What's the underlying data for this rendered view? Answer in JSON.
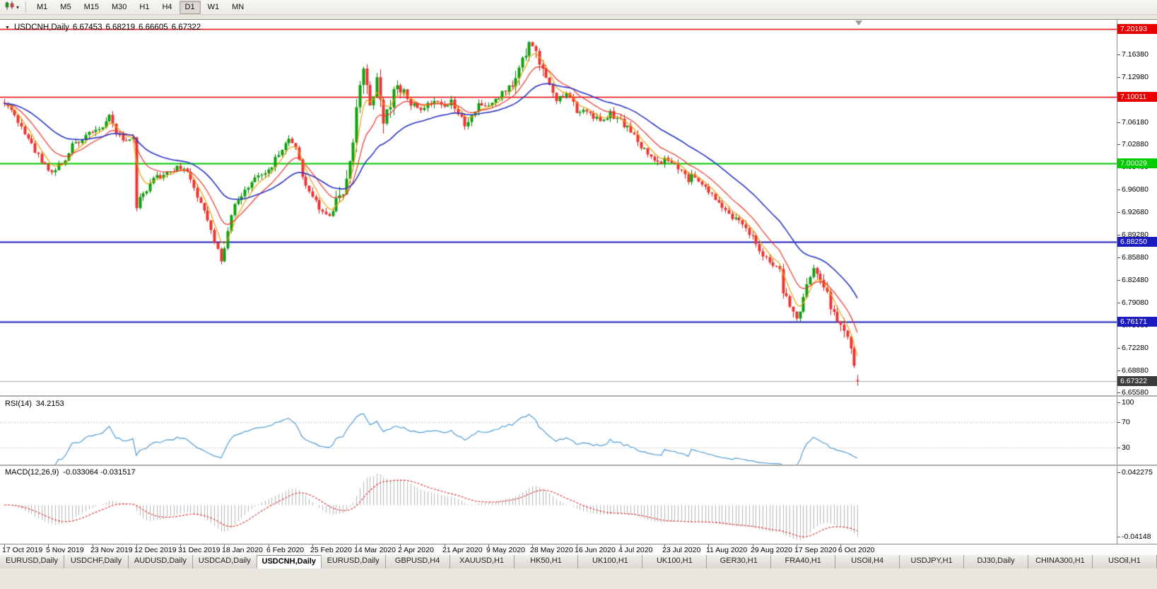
{
  "toolbar": {
    "timeframes": [
      "M1",
      "M5",
      "M15",
      "M30",
      "H1",
      "H4",
      "D1",
      "W1",
      "MN"
    ],
    "active_timeframe": "D1",
    "chart_type_icon": "candlestick-chart-icon",
    "dropdown_icon": "chevron-down"
  },
  "chart_header": {
    "collapse_icon": "▼",
    "symbol": "USDCNH,Daily",
    "open": "6.67453",
    "high": "6.68219",
    "low": "6.66605",
    "close": "6.67322"
  },
  "chart_data": {
    "type": "candlestick",
    "symbol": "USDCNH",
    "timeframe": "Daily",
    "price_axis": {
      "labels": [
        "7.16380",
        "7.12980",
        "7.09580",
        "7.06180",
        "7.02880",
        "6.99480",
        "6.96080",
        "6.92680",
        "6.89280",
        "6.85880",
        "6.82480",
        "6.79080",
        "6.75680",
        "6.72280",
        "6.68880",
        "6.65580"
      ],
      "range": {
        "top": 7.2159,
        "bottom": 6.6527
      }
    },
    "hlines": [
      {
        "price": 7.20193,
        "label": "7.20193",
        "color": "#e80000",
        "width": 1.4
      },
      {
        "price": 7.10011,
        "label": "7.10011",
        "color": "#e80000",
        "width": 1.4
      },
      {
        "price": 7.00029,
        "label": "7.00029",
        "color": "#00cc00",
        "width": 1.8
      },
      {
        "price": 6.8825,
        "label": "6.88250",
        "color": "#1c1cbe",
        "width": 1.8
      },
      {
        "price": 6.76171,
        "label": "6.76171",
        "color": "#1c1cbe",
        "width": 1.8
      }
    ],
    "current_price": {
      "value": 6.67322,
      "label": "6.67322",
      "line_color": "#aaaaaa",
      "box_color": "#3c3c3c"
    },
    "colors": {
      "bull": "#0da10d",
      "bear": "#ee3333",
      "bull_wick": "#0a7d0a",
      "bear_wick": "#c02020",
      "ma_fast": "#f0a000",
      "ma_mid": "#f03428",
      "ma_slow": "#2a35c8",
      "rsi_line": "#4f9bd5",
      "rsi_levels_color": "#c8c8c8",
      "macd_hist": "#b6b6b6",
      "macd_signal": "#e03030"
    },
    "moving_averages": [
      {
        "period": 5,
        "type": "ema",
        "color_key": "ma_fast"
      },
      {
        "period": 12,
        "type": "ema",
        "color_key": "ma_mid"
      },
      {
        "period": 30,
        "type": "ema",
        "color_key": "ma_slow"
      }
    ],
    "candles": {
      "count": 253,
      "x_step": 4.79,
      "seed": 1337,
      "base_vol": 0.009,
      "vol_zones": [
        {
          "from": 98,
          "to": 118,
          "factor": 2.4
        },
        {
          "from": 150,
          "to": 162,
          "factor": 1.7
        },
        {
          "from": 228,
          "to": 252,
          "factor": 1.5
        }
      ],
      "last": {
        "o": 6.67453,
        "h": 6.68219,
        "l": 6.66605,
        "c": 6.67322
      },
      "close_anchors": [
        [
          0,
          7.093
        ],
        [
          2,
          7.08
        ],
        [
          4,
          7.062
        ],
        [
          6,
          7.048
        ],
        [
          8,
          7.028
        ],
        [
          10,
          7.012
        ],
        [
          12,
          7.0
        ],
        [
          14,
          6.986
        ],
        [
          16,
          6.995
        ],
        [
          18,
          7.008
        ],
        [
          20,
          7.028
        ],
        [
          22,
          7.034
        ],
        [
          24,
          7.042
        ],
        [
          26,
          7.046
        ],
        [
          28,
          7.05
        ],
        [
          30,
          7.062
        ],
        [
          31,
          7.072
        ],
        [
          33,
          7.048
        ],
        [
          35,
          7.036
        ],
        [
          37,
          7.034
        ],
        [
          38,
          7.04
        ],
        [
          39,
          6.932
        ],
        [
          40,
          6.95
        ],
        [
          42,
          6.962
        ],
        [
          44,
          6.975
        ],
        [
          46,
          6.982
        ],
        [
          48,
          6.988
        ],
        [
          50,
          6.992
        ],
        [
          52,
          6.994
        ],
        [
          54,
          6.984
        ],
        [
          56,
          6.962
        ],
        [
          58,
          6.944
        ],
        [
          60,
          6.915
        ],
        [
          62,
          6.884
        ],
        [
          64,
          6.856
        ],
        [
          65,
          6.868
        ],
        [
          66,
          6.9
        ],
        [
          68,
          6.937
        ],
        [
          70,
          6.952
        ],
        [
          72,
          6.966
        ],
        [
          74,
          6.978
        ],
        [
          76,
          6.984
        ],
        [
          78,
          6.992
        ],
        [
          80,
          7.005
        ],
        [
          82,
          7.022
        ],
        [
          84,
          7.038
        ],
        [
          86,
          7.028
        ],
        [
          88,
          6.982
        ],
        [
          90,
          6.958
        ],
        [
          92,
          6.94
        ],
        [
          94,
          6.928
        ],
        [
          96,
          6.92
        ],
        [
          98,
          6.936
        ],
        [
          100,
          6.962
        ],
        [
          102,
          7.005
        ],
        [
          103,
          7.032
        ],
        [
          104,
          7.075
        ],
        [
          105,
          7.118
        ],
        [
          106,
          7.15
        ],
        [
          107,
          7.12
        ],
        [
          108,
          7.092
        ],
        [
          109,
          7.105
        ],
        [
          110,
          7.118
        ],
        [
          111,
          7.085
        ],
        [
          112,
          7.062
        ],
        [
          113,
          7.078
        ],
        [
          114,
          7.095
        ],
        [
          115,
          7.11
        ],
        [
          116,
          7.118
        ],
        [
          117,
          7.11
        ],
        [
          119,
          7.096
        ],
        [
          121,
          7.086
        ],
        [
          123,
          7.082
        ],
        [
          125,
          7.09
        ],
        [
          127,
          7.098
        ],
        [
          129,
          7.09
        ],
        [
          130,
          7.084
        ],
        [
          132,
          7.094
        ],
        [
          134,
          7.078
        ],
        [
          136,
          7.058
        ],
        [
          138,
          7.068
        ],
        [
          140,
          7.086
        ],
        [
          142,
          7.082
        ],
        [
          143,
          7.09
        ],
        [
          145,
          7.098
        ],
        [
          147,
          7.106
        ],
        [
          149,
          7.116
        ],
        [
          151,
          7.13
        ],
        [
          153,
          7.152
        ],
        [
          154,
          7.168
        ],
        [
          155,
          7.183
        ],
        [
          156,
          7.178
        ],
        [
          157,
          7.168
        ],
        [
          158,
          7.152
        ],
        [
          159,
          7.138
        ],
        [
          160,
          7.124
        ],
        [
          161,
          7.112
        ],
        [
          163,
          7.096
        ],
        [
          165,
          7.098
        ],
        [
          166,
          7.104
        ],
        [
          168,
          7.09
        ],
        [
          169,
          7.074
        ],
        [
          171,
          7.082
        ],
        [
          173,
          7.072
        ],
        [
          175,
          7.066
        ],
        [
          177,
          7.062
        ],
        [
          179,
          7.074
        ],
        [
          181,
          7.068
        ],
        [
          182,
          7.064
        ],
        [
          184,
          7.054
        ],
        [
          186,
          7.04
        ],
        [
          188,
          7.026
        ],
        [
          190,
          7.016
        ],
        [
          192,
          7.008
        ],
        [
          194,
          7.002
        ],
        [
          196,
          7.006
        ],
        [
          198,
          6.996
        ],
        [
          200,
          6.986
        ],
        [
          202,
          6.976
        ],
        [
          204,
          6.982
        ],
        [
          206,
          6.97
        ],
        [
          208,
          6.958
        ],
        [
          210,
          6.948
        ],
        [
          212,
          6.938
        ],
        [
          214,
          6.926
        ],
        [
          216,
          6.916
        ],
        [
          218,
          6.906
        ],
        [
          220,
          6.894
        ],
        [
          221,
          6.888
        ],
        [
          223,
          6.87
        ],
        [
          225,
          6.856
        ],
        [
          227,
          6.846
        ],
        [
          229,
          6.84
        ],
        [
          230,
          6.812
        ],
        [
          231,
          6.8
        ],
        [
          232,
          6.788
        ],
        [
          233,
          6.776
        ],
        [
          234,
          6.768
        ],
        [
          235,
          6.772
        ],
        [
          236,
          6.798
        ],
        [
          237,
          6.818
        ],
        [
          238,
          6.828
        ],
        [
          239,
          6.836
        ],
        [
          240,
          6.83
        ],
        [
          241,
          6.822
        ],
        [
          242,
          6.812
        ],
        [
          243,
          6.8
        ],
        [
          244,
          6.786
        ],
        [
          245,
          6.772
        ],
        [
          246,
          6.762
        ],
        [
          247,
          6.752
        ],
        [
          248,
          6.744
        ],
        [
          249,
          6.734
        ],
        [
          250,
          6.718
        ],
        [
          251,
          6.695
        ],
        [
          252,
          6.6732
        ]
      ]
    },
    "rsi": {
      "name": "RSI(14)",
      "value": "34.2153",
      "period": 14,
      "levels": [
        70,
        30
      ],
      "axis_labels": [
        {
          "v": 100,
          "label": "100"
        },
        {
          "v": 70,
          "label": "70"
        },
        {
          "v": 30,
          "label": "30"
        }
      ]
    },
    "macd": {
      "name": "MACD(12,26,9)",
      "values": "-0.033064 -0.031517",
      "fast": 12,
      "slow": 26,
      "signal": 9,
      "axis_top_label": "0.042275",
      "axis_bottom_label": "-0.04148",
      "scale_max": 0.0465
    },
    "date_ticks": [
      {
        "i": 0,
        "label": "17 Oct 2019"
      },
      {
        "i": 13,
        "label": "5 Nov 2019"
      },
      {
        "i": 26,
        "label": "23 Nov 2019"
      },
      {
        "i": 39,
        "label": "12 Dec 2019"
      },
      {
        "i": 52,
        "label": "31 Dec 2019"
      },
      {
        "i": 65,
        "label": "18 Jan 2020"
      },
      {
        "i": 78,
        "label": "6 Feb 2020"
      },
      {
        "i": 91,
        "label": "25 Feb 2020"
      },
      {
        "i": 104,
        "label": "14 Mar 2020"
      },
      {
        "i": 117,
        "label": "2 Apr 2020"
      },
      {
        "i": 130,
        "label": "21 Apr 2020"
      },
      {
        "i": 143,
        "label": "9 May 2020"
      },
      {
        "i": 156,
        "label": "28 May 2020"
      },
      {
        "i": 169,
        "label": "16 Jun 2020"
      },
      {
        "i": 182,
        "label": "4 Jul 2020"
      },
      {
        "i": 195,
        "label": "23 Jul 2020"
      },
      {
        "i": 208,
        "label": "11 Aug 2020"
      },
      {
        "i": 221,
        "label": "29 Aug 2020"
      },
      {
        "i": 234,
        "label": "17 Sep 2020"
      },
      {
        "i": 247,
        "label": "6 Oct 2020"
      }
    ]
  },
  "tabs": {
    "active_index": 4,
    "items": [
      "EURUSD,Daily",
      "USDCHF,Daily",
      "AUDUSD,Daily",
      "USDCAD,Daily",
      "USDCNH,Daily",
      "EURUSD,Daily",
      "GBPUSD,H4",
      "XAUUSD,H1",
      "HK50,H1",
      "UK100,H1",
      "UK100,H1",
      "GER30,H1",
      "FRA40,H1",
      "USOil,H4",
      "USDJPY,H1",
      "DJ30,Daily",
      "CHINA300,H1",
      "USOil,H1"
    ]
  }
}
